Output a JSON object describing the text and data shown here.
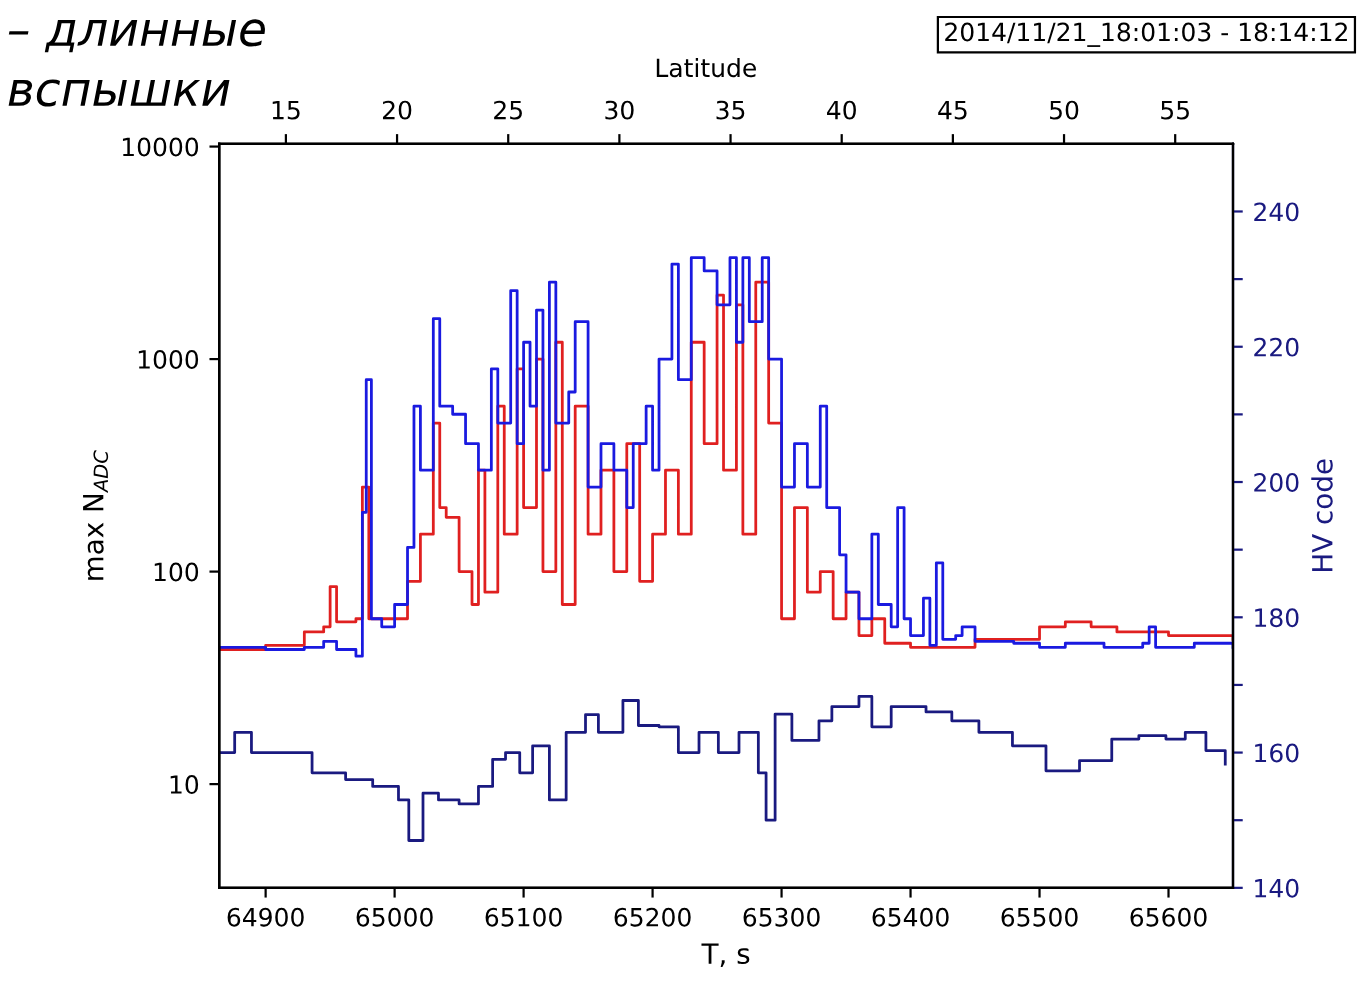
{
  "chart_data": {
    "type": "step",
    "title": "– длинные\nвспышки",
    "xlabel": "T, s",
    "ylabel": "max N$_{ADC}$",
    "y2label": "HV code",
    "x2label": "Latitude",
    "annotations": [
      "2014/11/21_18:01:03 - 18:14:12"
    ],
    "xlim": [
      64864,
      65650
    ],
    "xticks": [
      64900,
      65000,
      65100,
      65200,
      65300,
      65400,
      65500,
      65600
    ],
    "ylim": [
      3.25,
      10300
    ],
    "yticks": [
      10,
      100,
      1000,
      10000
    ],
    "log": "y",
    "y2lim": [
      140,
      250
    ],
    "y2ticks": [
      140,
      {
        "value": 150,
        "label": null
      },
      160,
      {
        "value": 170,
        "label": null
      },
      180,
      {
        "value": 190,
        "label": null
      },
      200,
      {
        "value": 210,
        "label": null
      },
      220,
      {
        "value": 230,
        "label": null
      },
      240
    ],
    "x2lim": [
      12,
      57.6
    ],
    "x2ticks": [
      15,
      20,
      25,
      30,
      35,
      40,
      45,
      50,
      55
    ],
    "grid": false,
    "legend": false,
    "series": [
      {
        "color": "#e02020",
        "x": [
          64865,
          64900,
          64930,
          64945,
          64950,
          64955,
          64970,
          64975,
          64980,
          64990,
          65010,
          65020,
          65030,
          65035,
          65040,
          65050,
          65060,
          65065,
          65070,
          65080,
          65085,
          65095,
          65100,
          65110,
          65115,
          65125,
          65130,
          65140,
          65150,
          65160,
          65170,
          65180,
          65190,
          65200,
          65210,
          65220,
          65230,
          65240,
          65250,
          65255,
          65265,
          65270,
          65280,
          65290,
          65300,
          65310,
          65320,
          65330,
          65340,
          65350,
          65360,
          65370,
          65380,
          65400,
          65450,
          65500,
          65520,
          65540,
          65560,
          65600,
          65650
        ],
        "values": [
          43,
          45,
          52,
          55,
          85,
          58,
          60,
          250,
          60,
          60,
          90,
          150,
          500,
          200,
          180,
          100,
          70,
          300,
          80,
          600,
          150,
          900,
          200,
          1000,
          100,
          1200,
          70,
          600,
          150,
          300,
          100,
          400,
          90,
          150,
          300,
          150,
          1200,
          400,
          2000,
          300,
          1800,
          150,
          2300,
          500,
          60,
          200,
          80,
          100,
          60,
          80,
          50,
          60,
          46,
          44,
          48,
          55,
          58,
          55,
          52,
          50,
          48
        ]
      },
      {
        "color": "#1a1ae0",
        "x": [
          64865,
          64900,
          64930,
          64945,
          64955,
          64970,
          64975,
          64978,
          64982,
          64990,
          65000,
          65010,
          65015,
          65020,
          65030,
          65035,
          65045,
          65055,
          65065,
          65075,
          65080,
          65090,
          65095,
          65100,
          65105,
          65110,
          65115,
          65120,
          65125,
          65135,
          65140,
          65150,
          65160,
          65170,
          65180,
          65185,
          65195,
          65200,
          65205,
          65215,
          65220,
          65230,
          65240,
          65250,
          65260,
          65265,
          65270,
          65275,
          65285,
          65290,
          65300,
          65310,
          65320,
          65330,
          65335,
          65345,
          65350,
          65360,
          65370,
          65375,
          65385,
          65390,
          65395,
          65400,
          65410,
          65415,
          65420,
          65425,
          65435,
          65440,
          65450,
          65480,
          65500,
          65520,
          65550,
          65580,
          65585,
          65590,
          65620,
          65650
        ],
        "values": [
          44,
          43,
          44,
          47,
          43,
          40,
          190,
          800,
          60,
          55,
          70,
          130,
          600,
          300,
          1550,
          600,
          550,
          400,
          300,
          900,
          500,
          2100,
          400,
          1200,
          600,
          1700,
          300,
          2300,
          500,
          700,
          1500,
          250,
          400,
          300,
          200,
          400,
          600,
          300,
          1000,
          2800,
          800,
          3000,
          2600,
          1800,
          3000,
          1200,
          3000,
          1500,
          3000,
          1000,
          250,
          400,
          250,
          600,
          200,
          120,
          80,
          60,
          150,
          70,
          55,
          200,
          60,
          50,
          75,
          45,
          110,
          48,
          50,
          55,
          47,
          46,
          44,
          46,
          44,
          46,
          55,
          44,
          46,
          44
        ]
      },
      {
        "color": "#1a1a80",
        "axis": "y2",
        "x": [
          64864,
          64876,
          64889,
          64921,
          64936,
          64962,
          64983,
          65003,
          65011,
          65022,
          65034,
          65050,
          65065,
          65076,
          65086,
          65097,
          65107,
          65120,
          65133,
          65148,
          65158,
          65177,
          65189,
          65205,
          65220,
          65236,
          65251,
          65267,
          65282,
          65288,
          65295,
          65308,
          65329,
          65339,
          65360,
          65370,
          65385,
          65412,
          65432,
          65453,
          65479,
          65505,
          65531,
          65556,
          65577,
          65598,
          65613,
          65629,
          65644
        ],
        "values": [
          160,
          163,
          160,
          160,
          157,
          156,
          155,
          153,
          147,
          154,
          153,
          152.4,
          155,
          159,
          160,
          157,
          161,
          153,
          163,
          165.6,
          163,
          167.7,
          164,
          163.8,
          160,
          163,
          160,
          163,
          157,
          150,
          165.7,
          161.8,
          164.7,
          166.8,
          168.3,
          163.8,
          166.8,
          166,
          164.7,
          163,
          161,
          157.3,
          158.8,
          162,
          162.5,
          162,
          163,
          160.3,
          158.3
        ]
      }
    ]
  }
}
